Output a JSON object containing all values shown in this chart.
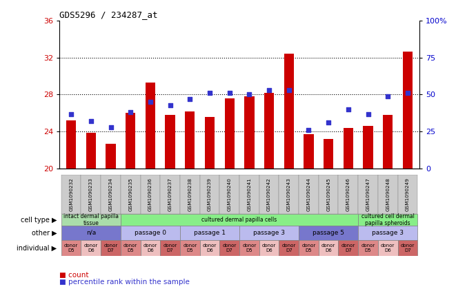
{
  "title": "GDS5296 / 234287_at",
  "samples": [
    "GSM1090232",
    "GSM1090233",
    "GSM1090234",
    "GSM1090235",
    "GSM1090236",
    "GSM1090237",
    "GSM1090238",
    "GSM1090239",
    "GSM1090240",
    "GSM1090241",
    "GSM1090242",
    "GSM1090243",
    "GSM1090244",
    "GSM1090245",
    "GSM1090246",
    "GSM1090247",
    "GSM1090248",
    "GSM1090249"
  ],
  "counts": [
    25.2,
    23.9,
    22.7,
    26.0,
    29.3,
    25.8,
    26.2,
    25.6,
    27.6,
    27.8,
    28.2,
    32.4,
    23.7,
    23.2,
    24.4,
    24.6,
    25.8,
    32.6
  ],
  "percentiles": [
    37,
    32,
    28,
    38,
    45,
    43,
    47,
    51,
    51,
    50,
    53,
    53,
    26,
    31,
    40,
    37,
    49,
    51
  ],
  "bar_color": "#cc0000",
  "dot_color": "#3333cc",
  "ylim_left": [
    20,
    36
  ],
  "ylim_right": [
    0,
    100
  ],
  "yticks_left": [
    20,
    24,
    28,
    32,
    36
  ],
  "yticks_right": [
    0,
    25,
    50,
    75,
    100
  ],
  "yticklabels_right": [
    "0",
    "25",
    "50",
    "75",
    "100%"
  ],
  "cell_type_groups": [
    {
      "label": "intact dermal papilla\ntissue",
      "start": 0,
      "end": 3,
      "color": "#aaddaa"
    },
    {
      "label": "cultured dermal papilla cells",
      "start": 3,
      "end": 15,
      "color": "#88ee88"
    },
    {
      "label": "cultured cell dermal\npapilla spheroids",
      "start": 15,
      "end": 18,
      "color": "#88ee88"
    }
  ],
  "other_groups": [
    {
      "label": "n/a",
      "start": 0,
      "end": 3,
      "color": "#7777cc"
    },
    {
      "label": "passage 0",
      "start": 3,
      "end": 6,
      "color": "#bbbbee"
    },
    {
      "label": "passage 1",
      "start": 6,
      "end": 9,
      "color": "#bbbbee"
    },
    {
      "label": "passage 3",
      "start": 9,
      "end": 12,
      "color": "#bbbbee"
    },
    {
      "label": "passage 5",
      "start": 12,
      "end": 15,
      "color": "#7777cc"
    },
    {
      "label": "passage 3",
      "start": 15,
      "end": 18,
      "color": "#bbbbee"
    }
  ],
  "individual_groups": [
    {
      "label": "donor\nD5",
      "start": 0,
      "end": 1,
      "color": "#dd8888"
    },
    {
      "label": "donor\nD6",
      "start": 1,
      "end": 2,
      "color": "#eebfbf"
    },
    {
      "label": "donor\nD7",
      "start": 2,
      "end": 3,
      "color": "#cc6666"
    },
    {
      "label": "donor\nD5",
      "start": 3,
      "end": 4,
      "color": "#dd8888"
    },
    {
      "label": "donor\nD6",
      "start": 4,
      "end": 5,
      "color": "#eebfbf"
    },
    {
      "label": "donor\nD7",
      "start": 5,
      "end": 6,
      "color": "#cc6666"
    },
    {
      "label": "donor\nD5",
      "start": 6,
      "end": 7,
      "color": "#dd8888"
    },
    {
      "label": "donor\nD6",
      "start": 7,
      "end": 8,
      "color": "#eebfbf"
    },
    {
      "label": "donor\nD7",
      "start": 8,
      "end": 9,
      "color": "#cc6666"
    },
    {
      "label": "donor\nD5",
      "start": 9,
      "end": 10,
      "color": "#dd8888"
    },
    {
      "label": "donor\nD6",
      "start": 10,
      "end": 11,
      "color": "#eebfbf"
    },
    {
      "label": "donor\nD7",
      "start": 11,
      "end": 12,
      "color": "#cc6666"
    },
    {
      "label": "donor\nD5",
      "start": 12,
      "end": 13,
      "color": "#dd8888"
    },
    {
      "label": "donor\nD6",
      "start": 13,
      "end": 14,
      "color": "#eebfbf"
    },
    {
      "label": "donor\nD7",
      "start": 14,
      "end": 15,
      "color": "#cc6666"
    },
    {
      "label": "donor\nD5",
      "start": 15,
      "end": 16,
      "color": "#dd8888"
    },
    {
      "label": "donor\nD6",
      "start": 16,
      "end": 17,
      "color": "#eebfbf"
    },
    {
      "label": "donor\nD7",
      "start": 17,
      "end": 18,
      "color": "#cc6666"
    }
  ],
  "row_labels": [
    "cell type",
    "other",
    "individual"
  ],
  "legend_bar_label": "count",
  "legend_dot_label": "percentile rank within the sample",
  "bg_color": "#ffffff",
  "tick_color_left": "#cc0000",
  "tick_color_right": "#0000cc",
  "sample_bg_color": "#cccccc",
  "grid_lines": [
    24,
    28,
    32
  ]
}
